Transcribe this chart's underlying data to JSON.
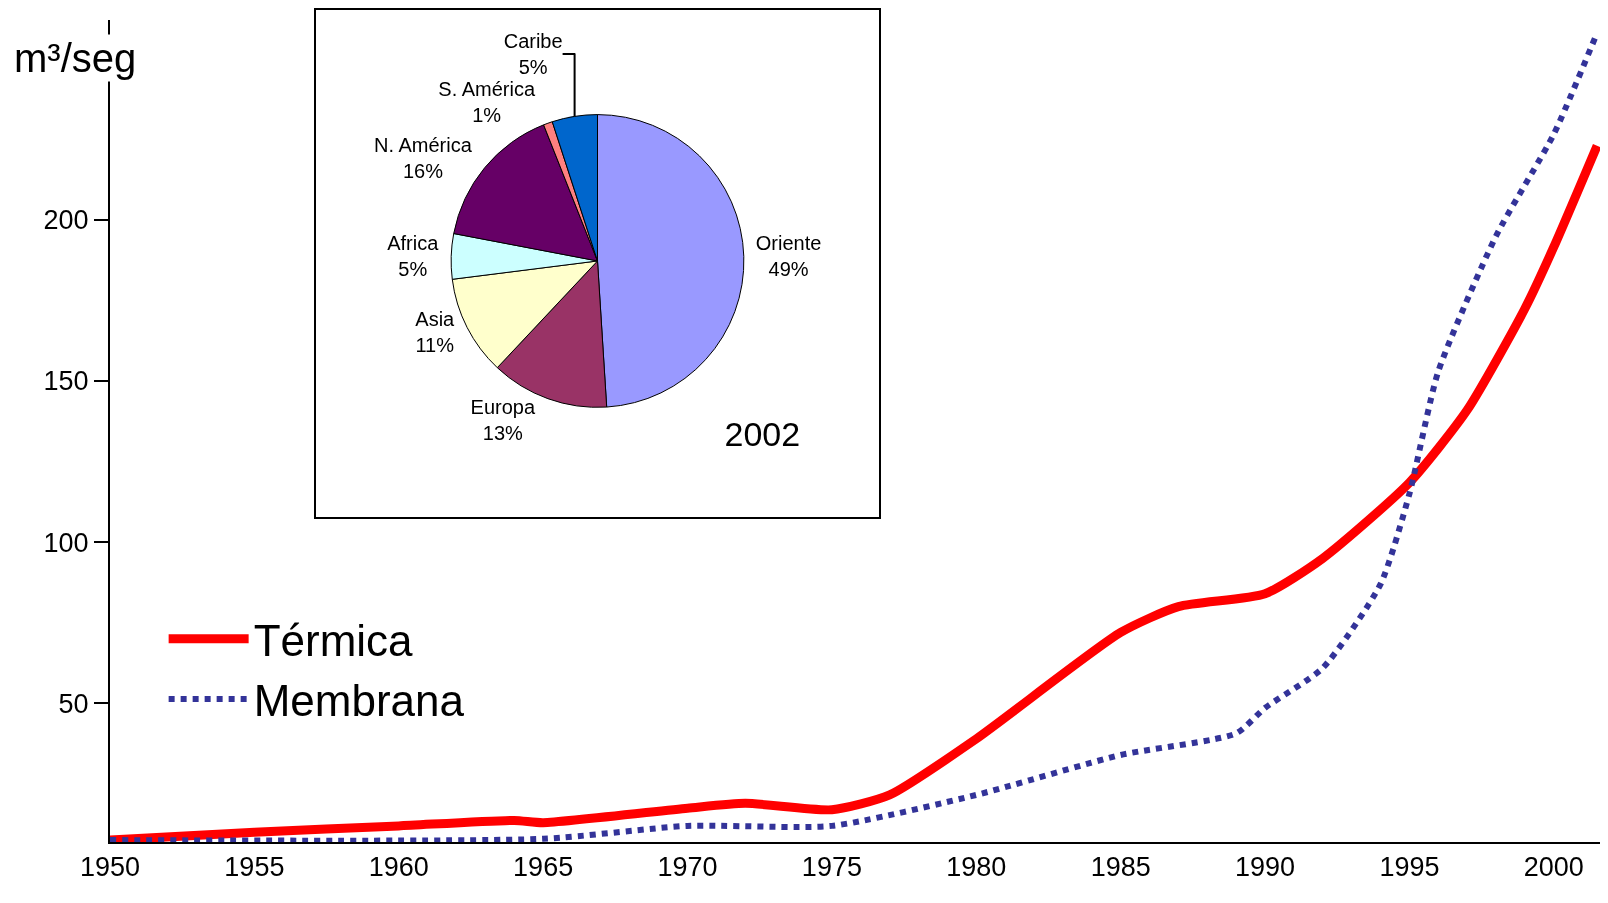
{
  "chart_data": [
    {
      "type": "line",
      "ylabel": "m³/seg",
      "xlim": [
        1950,
        2001.6
      ],
      "ylim": [
        7,
        262
      ],
      "xticks": [
        1950,
        1955,
        1960,
        1965,
        1970,
        1975,
        1980,
        1985,
        1990,
        1995,
        2000
      ],
      "yticks": [
        50,
        100,
        150,
        200
      ],
      "grid": false,
      "legend": "bottom left",
      "marker": "none",
      "series": [
        {
          "name": "Térmica",
          "color": "#ff0000",
          "line_style": "solid",
          "x": [
            1950,
            1955,
            1960,
            1964,
            1965,
            1970,
            1972,
            1975,
            1977,
            1980,
            1985,
            1987,
            1990,
            1992,
            1995,
            1997,
            1999,
            2000,
            2001.5
          ],
          "values": [
            7.6,
            10,
            12,
            13.7,
            13,
            17.5,
            19,
            17,
            21.6,
            39,
            72,
            80,
            84,
            95,
            118.5,
            141,
            172.5,
            191.6,
            223
          ]
        },
        {
          "name": "Membrana",
          "color": "#333399",
          "line_style": "dotted",
          "x": [
            1950,
            1965,
            1970,
            1975,
            1980,
            1985,
            1989,
            1990,
            1992,
            1994,
            1995,
            1996,
            1998,
            2000,
            2001.5
          ],
          "values": [
            7.6,
            8,
            12,
            12,
            21.6,
            34,
            40.7,
            48.6,
            61,
            87,
            115,
            153,
            195,
            226.6,
            258
          ]
        }
      ]
    },
    {
      "type": "pie",
      "title": "2002",
      "categories": [
        "Oriente",
        "Europa",
        "Asia",
        "Africa",
        "N. América",
        "S. América",
        "Caribe"
      ],
      "values": [
        49,
        13,
        11,
        5,
        16,
        1,
        5
      ],
      "value_labels": [
        "49%",
        "13%",
        "11%",
        "5%",
        "16%",
        "1%",
        "5%"
      ],
      "colors": [
        "#9999ff",
        "#993366",
        "#ffffcc",
        "#ccffff",
        "#660066",
        "#ff8080",
        "#0066cc"
      ]
    }
  ]
}
